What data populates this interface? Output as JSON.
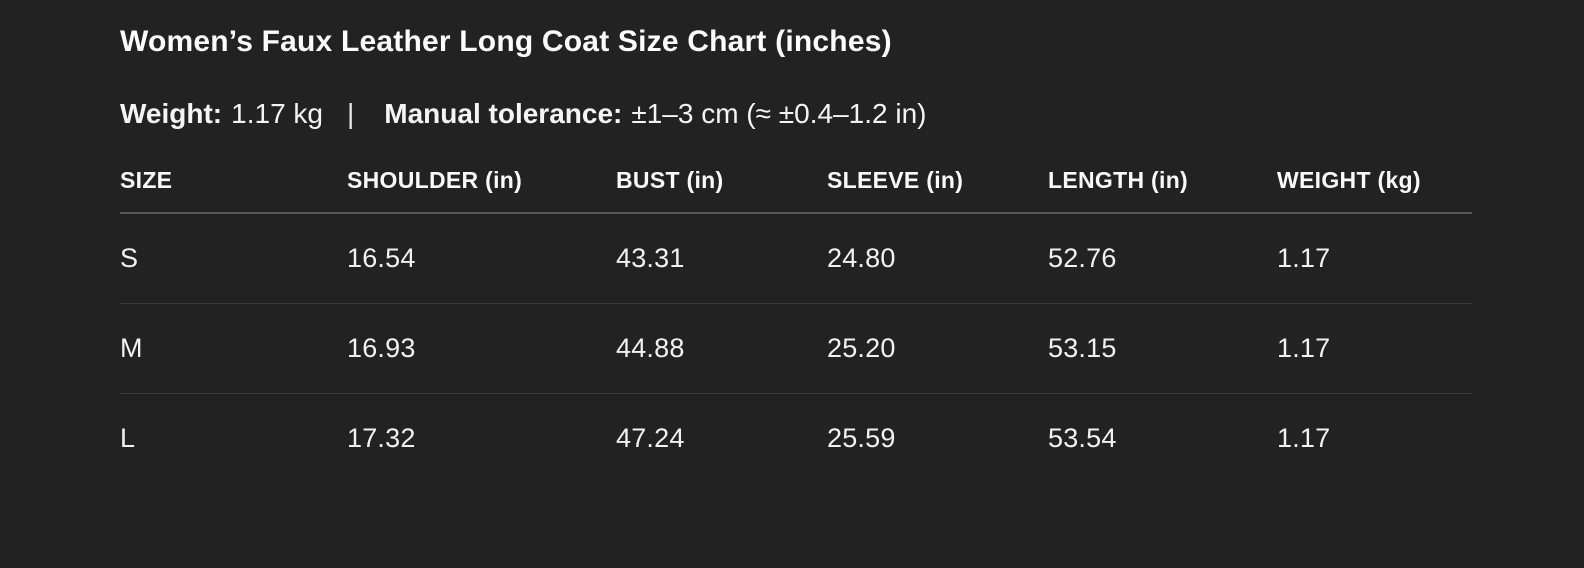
{
  "page": {
    "title": "Women’s Faux Leather Long Coat Size Chart (inches)",
    "meta": {
      "weight_label": "Weight:",
      "weight_value": "1.17 kg",
      "separator": "|",
      "tolerance_label": "Manual tolerance:",
      "tolerance_value": "±1–3 cm (≈ ±0.4–1.2 in)"
    }
  },
  "colors": {
    "background": "#222222",
    "text": "#ffffff",
    "header_divider": "#565656",
    "row_divider": "#383838"
  },
  "chart_data": {
    "type": "table",
    "title": "Women’s Faux Leather Long Coat Size Chart (inches)",
    "columns": [
      "SIZE",
      "SHOULDER (in)",
      "BUST (in)",
      "SLEEVE (in)",
      "LENGTH (in)",
      "WEIGHT (kg)"
    ],
    "rows": [
      [
        "S",
        "16.54",
        "43.31",
        "24.80",
        "52.76",
        "1.17"
      ],
      [
        "M",
        "16.93",
        "44.88",
        "25.20",
        "53.15",
        "1.17"
      ],
      [
        "L",
        "17.32",
        "47.24",
        "25.59",
        "53.54",
        "1.17"
      ]
    ],
    "units": {
      "dimensions": "inches",
      "weight": "kg"
    },
    "notes": "Weight: 1.17 kg | Manual tolerance: ±1–3 cm (≈ ±0.4–1.2 in)"
  }
}
